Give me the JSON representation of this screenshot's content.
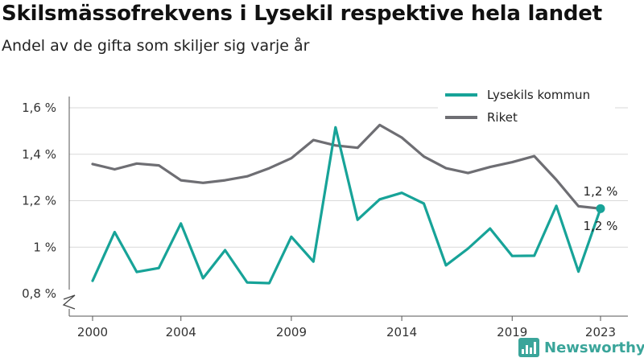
{
  "chart_data": {
    "type": "line",
    "title": "Skilsmässofrekvens i Lysekil respektive hela landet",
    "subtitle": "Andel av de gifta som skiljer sig varje år",
    "x": [
      2000,
      2001,
      2002,
      2003,
      2004,
      2005,
      2006,
      2007,
      2008,
      2009,
      2010,
      2011,
      2012,
      2013,
      2014,
      2015,
      2016,
      2017,
      2018,
      2019,
      2020,
      2021,
      2022,
      2023
    ],
    "x_ticks": [
      2000,
      2004,
      2009,
      2014,
      2019,
      2023
    ],
    "y_ticks": [
      0.8,
      1.0,
      1.2,
      1.4,
      1.6
    ],
    "y_tick_labels": [
      "0,8 %",
      "1 %",
      "1,2 %",
      "1,4 %",
      "1,6 %"
    ],
    "ylim": [
      0.8,
      1.6
    ],
    "grid": true,
    "legend_position": "top-right",
    "series": [
      {
        "name": "Lysekils kommun",
        "color": "#17a398",
        "values": [
          0.855,
          1.065,
          0.893,
          0.91,
          1.102,
          0.866,
          0.987,
          0.848,
          0.845,
          1.045,
          0.938,
          1.516,
          1.118,
          1.206,
          1.234,
          1.188,
          0.922,
          0.994,
          1.08,
          0.962,
          0.963,
          1.178,
          0.895,
          1.166
        ],
        "end_label": "1,2 %"
      },
      {
        "name": "Riket",
        "color": "#6e6e73",
        "values": [
          1.358,
          1.335,
          1.36,
          1.352,
          1.288,
          1.277,
          1.288,
          1.305,
          1.34,
          1.383,
          1.461,
          1.438,
          1.428,
          1.526,
          1.472,
          1.39,
          1.34,
          1.319,
          1.345,
          1.366,
          1.392,
          1.29,
          1.176,
          1.166
        ],
        "end_label": "1,2 %"
      }
    ]
  },
  "branding": {
    "name": "Newsworthy",
    "logo_icon": "bar-chart-icon",
    "color": "#3aa59a"
  }
}
